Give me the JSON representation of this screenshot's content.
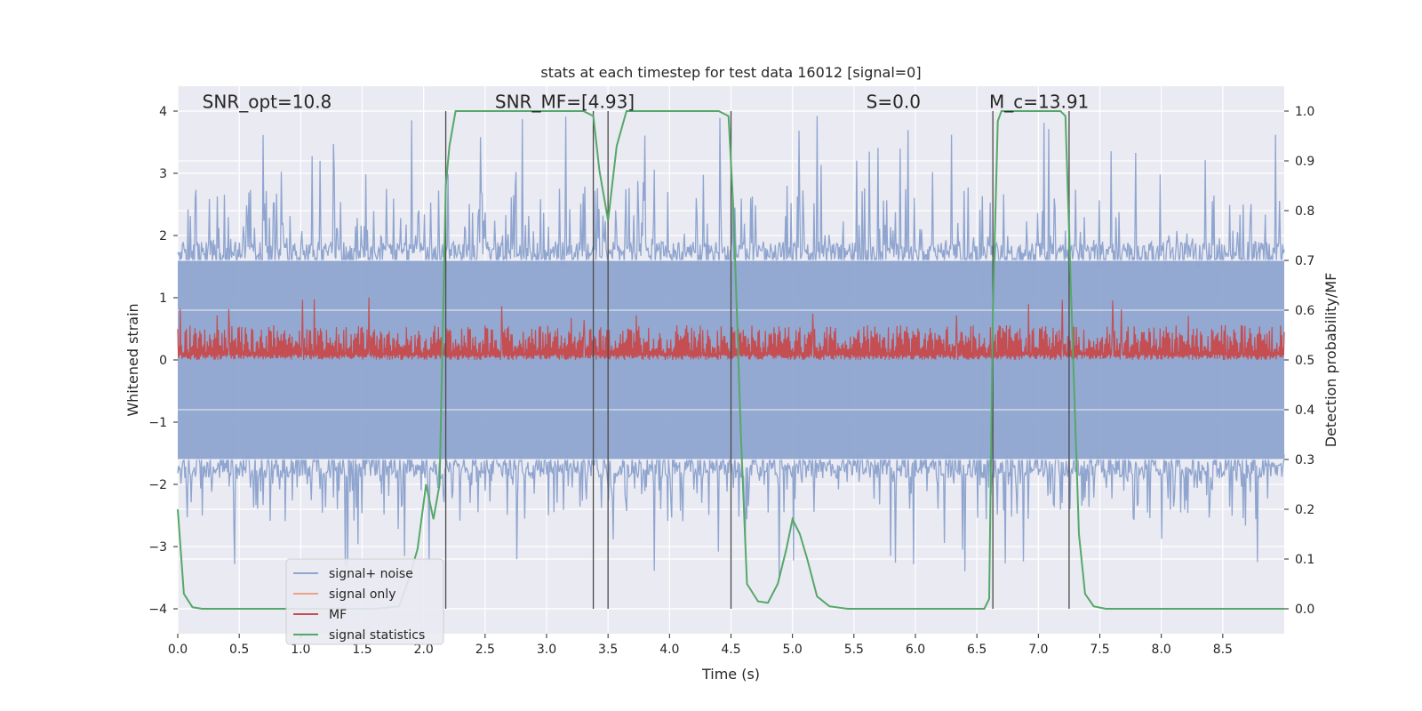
{
  "chart_data": {
    "type": "line",
    "title": "stats at each timestep for test data 16012 [signal=0]",
    "xlabel": "Time (s)",
    "ylabel": "Whitened strain",
    "y2label": "Detection probability/MF",
    "xlim": [
      0.0,
      9.0
    ],
    "ylim": [
      -4.4,
      4.4
    ],
    "y2lim": [
      -0.05,
      1.05
    ],
    "xticks": [
      0.0,
      0.5,
      1.0,
      1.5,
      2.0,
      2.5,
      3.0,
      3.5,
      4.0,
      4.5,
      5.0,
      5.5,
      6.0,
      6.5,
      7.0,
      7.5,
      8.0,
      8.5
    ],
    "xtick_labels": [
      "0.0",
      "0.5",
      "1.0",
      "1.5",
      "2.0",
      "2.5",
      "3.0",
      "3.5",
      "4.0",
      "4.5",
      "5.0",
      "5.5",
      "6.0",
      "6.5",
      "7.0",
      "7.5",
      "8.0",
      "8.5"
    ],
    "yticks": [
      -4,
      -3,
      -2,
      -1,
      0,
      1,
      2,
      3,
      4
    ],
    "ytick_labels": [
      "−4",
      "−3",
      "−2",
      "−1",
      "0",
      "1",
      "2",
      "3",
      "4"
    ],
    "y2ticks": [
      0.0,
      0.1,
      0.2,
      0.3,
      0.4,
      0.5,
      0.6,
      0.7,
      0.8,
      0.9,
      1.0
    ],
    "y2tick_labels": [
      "0.0",
      "0.1",
      "0.2",
      "0.3",
      "0.4",
      "0.5",
      "0.6",
      "0.7",
      "0.8",
      "0.9",
      "1.0"
    ],
    "annotations": [
      {
        "key": "snr-opt",
        "text": "SNR_opt=10.8",
        "x": 0.2,
        "y": 4.15
      },
      {
        "key": "snr-mf",
        "text": "SNR_MF=[4.93]",
        "x": 2.58,
        "y": 4.15
      },
      {
        "key": "s",
        "text": "S=0.0",
        "x": 5.6,
        "y": 4.15
      },
      {
        "key": "mc",
        "text": "M_c=13.91",
        "x": 6.6,
        "y": 4.15
      }
    ],
    "vlines": [
      2.18,
      3.38,
      3.5,
      4.5,
      6.63,
      7.25
    ],
    "legend": {
      "placement": "lower-left",
      "entries": [
        {
          "label": "signal+ noise",
          "color": "#8fa5cf"
        },
        {
          "label": "signal only",
          "color": "#eda189"
        },
        {
          "label": "MF",
          "color": "#c44e52"
        },
        {
          "label": "signal statistics",
          "color": "#55a868"
        }
      ]
    },
    "grid": true,
    "colors": {
      "background": "#eaeaf2",
      "grid": "#ffffff",
      "noise": "#8fa5cf",
      "mf": "#c44e52",
      "stat": "#55a868",
      "vline": "#4a4a4a"
    },
    "series": [
      {
        "name": "signal+ noise",
        "axis": "left",
        "style": "noise-band",
        "t_start": 0.0,
        "t_end": 9.0,
        "dense_upper": 1.6,
        "dense_lower": -1.6,
        "peak_upper": 4.0,
        "peak_lower": -3.6
      },
      {
        "name": "signal only",
        "axis": "left",
        "x": [
          0.0,
          9.0
        ],
        "y": [
          0.0,
          0.0
        ]
      },
      {
        "name": "MF",
        "axis": "right",
        "style": "mf-band",
        "t_start": 0.0,
        "t_end": 9.0,
        "base": 0.5,
        "typical_max": 0.57,
        "peak_max": 0.63
      },
      {
        "name": "signal statistics",
        "axis": "right",
        "x": [
          0.0,
          0.05,
          0.12,
          0.2,
          0.4,
          1.0,
          1.6,
          1.8,
          1.88,
          1.95,
          2.02,
          2.08,
          2.13,
          2.18,
          2.21,
          2.26,
          2.35,
          3.3,
          3.38,
          3.43,
          3.5,
          3.57,
          3.65,
          4.4,
          4.48,
          4.52,
          4.58,
          4.63,
          4.72,
          4.8,
          4.88,
          4.95,
          5.0,
          5.06,
          5.12,
          5.2,
          5.3,
          5.45,
          6.56,
          6.6,
          6.63,
          6.67,
          6.7,
          7.18,
          7.22,
          7.27,
          7.33,
          7.38,
          7.45,
          7.55,
          9.0
        ],
        "y": [
          0.2,
          0.03,
          0.003,
          0.0,
          0.0,
          0.0,
          0.0,
          0.005,
          0.06,
          0.12,
          0.25,
          0.18,
          0.25,
          0.85,
          0.93,
          1.0,
          1.0,
          1.0,
          0.99,
          0.88,
          0.78,
          0.93,
          1.0,
          1.0,
          0.99,
          0.8,
          0.35,
          0.05,
          0.015,
          0.012,
          0.05,
          0.12,
          0.18,
          0.15,
          0.1,
          0.025,
          0.005,
          0.0,
          0.0,
          0.02,
          0.6,
          0.98,
          1.0,
          1.0,
          0.99,
          0.6,
          0.15,
          0.03,
          0.005,
          0.0,
          0.0
        ]
      }
    ]
  }
}
